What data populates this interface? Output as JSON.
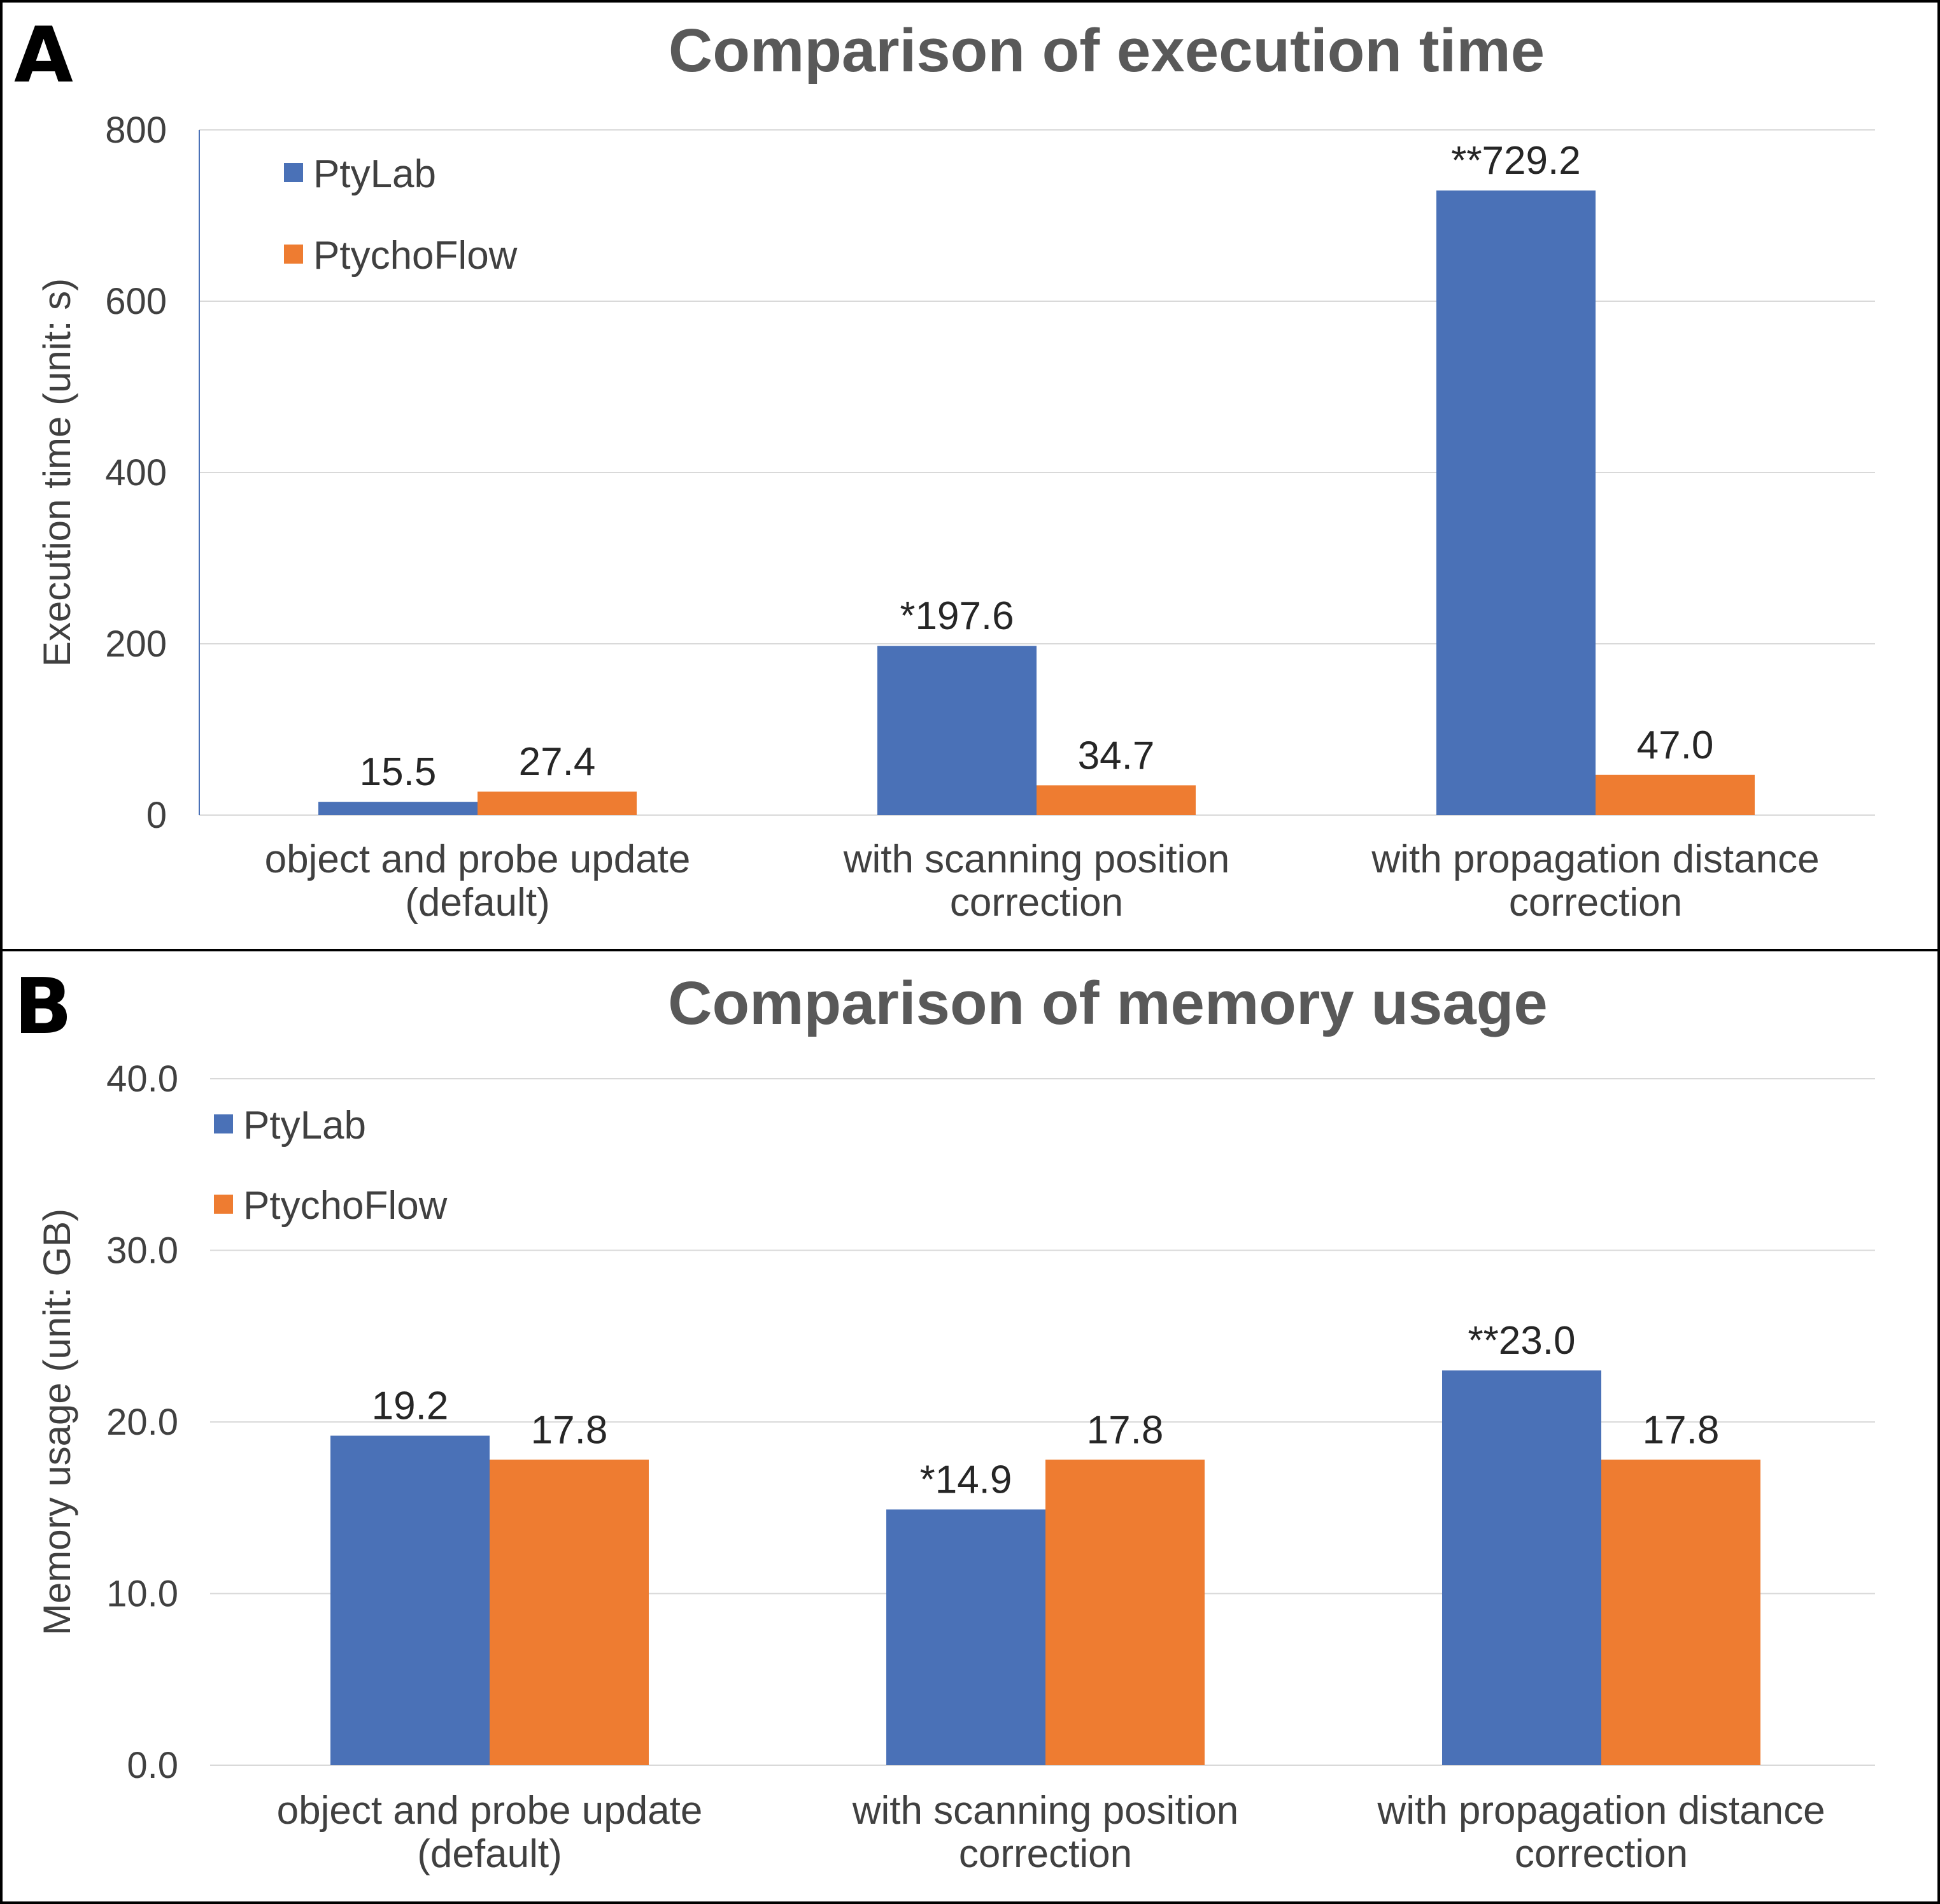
{
  "colors": {
    "PtyLab": "#4a71b7",
    "PtychoFlow": "#ee7c31",
    "grid": "#d9d9d9",
    "axis_text": "#404040",
    "title": "#595959"
  },
  "chart_data": [
    {
      "panel": "A",
      "type": "bar",
      "title": "Comparison of execution time",
      "ylabel": "Execution time  (unit: s)",
      "xlabel": "",
      "ylim": [
        0,
        800
      ],
      "yticks": [
        "0",
        "200",
        "400",
        "600",
        "800"
      ],
      "ytick_values": [
        0,
        200,
        400,
        600,
        800
      ],
      "categories": [
        [
          "object and probe update",
          "(default)"
        ],
        [
          "with scanning position",
          "correction"
        ],
        [
          "with propagation distance",
          "correction"
        ]
      ],
      "series": [
        {
          "name": "PtyLab",
          "values": [
            15.5,
            197.6,
            729.2
          ],
          "labels": [
            "15.5",
            "*197.6",
            "**729.2"
          ]
        },
        {
          "name": "PtychoFlow",
          "values": [
            27.4,
            34.7,
            47.0
          ],
          "labels": [
            "27.4",
            "34.7",
            "47.0"
          ]
        }
      ],
      "legend": "top-left"
    },
    {
      "panel": "B",
      "type": "bar",
      "title": "Comparison of memory usage",
      "ylabel": "Memory usage (unit: GB)",
      "xlabel": "",
      "ylim": [
        0,
        40
      ],
      "yticks": [
        "0.0",
        "10.0",
        "20.0",
        "30.0",
        "40.0"
      ],
      "ytick_values": [
        0,
        10,
        20,
        30,
        40
      ],
      "categories": [
        [
          "object and probe update",
          "(default)"
        ],
        [
          "with scanning position",
          "correction"
        ],
        [
          "with propagation distance",
          "correction"
        ]
      ],
      "series": [
        {
          "name": "PtyLab",
          "values": [
            19.2,
            14.9,
            23.0
          ],
          "labels": [
            "19.2",
            "*14.9",
            "**23.0"
          ]
        },
        {
          "name": "PtychoFlow",
          "values": [
            17.8,
            17.8,
            17.8
          ],
          "labels": [
            "17.8",
            "17.8",
            "17.8"
          ]
        }
      ],
      "legend": "top-left"
    }
  ]
}
